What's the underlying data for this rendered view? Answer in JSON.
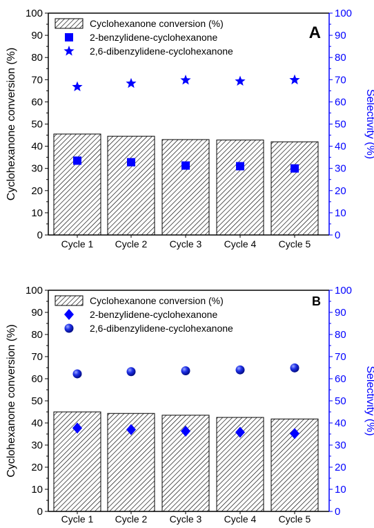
{
  "chart_data": [
    {
      "panel_label": "A",
      "type": "bar",
      "categories": [
        "Cycle 1",
        "Cycle 2",
        "Cycle 3",
        "Cycle 4",
        "Cycle 5"
      ],
      "ylabel": "Cyclohexanone conversion (%)",
      "y2label": "Selectivity (%)",
      "ylim": [
        0,
        100
      ],
      "y2lim": [
        0,
        100
      ],
      "y_ticks": [
        "0",
        "10",
        "20",
        "30",
        "40",
        "50",
        "60",
        "70",
        "80",
        "90",
        "100"
      ],
      "legend_position": "top-left",
      "series": [
        {
          "name": "Cyclohexanone conversion (%)",
          "kind": "bar",
          "axis": "left",
          "marker": "hatch",
          "values": [
            45.5,
            44.5,
            43.0,
            42.8,
            42.0
          ]
        },
        {
          "name": "2-benzylidene-cyclohexanone",
          "kind": "scatter",
          "axis": "right",
          "marker": "square",
          "values": [
            33.5,
            32.8,
            31.3,
            31.0,
            30.0
          ]
        },
        {
          "name": "2,6-dibenzylidene-cyclohexanone",
          "kind": "scatter",
          "axis": "right",
          "marker": "star",
          "values": [
            66.8,
            68.3,
            69.8,
            69.3,
            69.9
          ]
        }
      ]
    },
    {
      "panel_label": "B",
      "type": "bar",
      "categories": [
        "Cycle 1",
        "Cycle 2",
        "Cycle 3",
        "Cycle 4",
        "Cycle 5"
      ],
      "ylabel": "Cyclohexanone conversion (%)",
      "y2label": "Selectivity (%)",
      "ylim": [
        0,
        100
      ],
      "y2lim": [
        0,
        100
      ],
      "y_ticks": [
        "0",
        "10",
        "20",
        "30",
        "40",
        "50",
        "60",
        "70",
        "80",
        "90",
        "100"
      ],
      "legend_position": "top-left",
      "series": [
        {
          "name": "Cyclohexanone conversion (%)",
          "kind": "bar",
          "axis": "left",
          "marker": "hatch",
          "values": [
            45.0,
            44.3,
            43.5,
            42.5,
            41.8
          ]
        },
        {
          "name": "2-benzylidene-cyclohexanone",
          "kind": "scatter",
          "axis": "right",
          "marker": "diamond",
          "values": [
            37.7,
            37.0,
            36.3,
            35.8,
            35.2
          ]
        },
        {
          "name": "2,6-dibenzylidene-cyclohexanone",
          "kind": "scatter",
          "axis": "right",
          "marker": "sphere",
          "values": [
            62.2,
            63.2,
            63.6,
            64.0,
            64.9
          ]
        }
      ]
    }
  ],
  "colors": {
    "axis_left": "#000000",
    "axis_right": "#0000ff",
    "marker": "#0000ff",
    "hatch": "#000000"
  }
}
